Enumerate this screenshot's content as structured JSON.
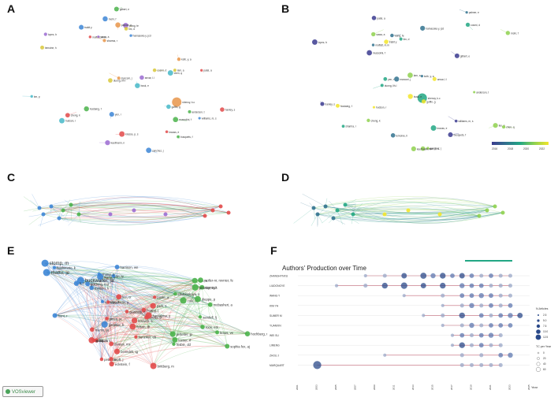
{
  "panels": {
    "A": {
      "letter": "A"
    },
    "B": {
      "letter": "B",
      "colorbar_ticks": [
        "2016",
        "2018",
        "2020",
        "2022"
      ]
    },
    "C": {
      "letter": "C"
    },
    "D": {
      "letter": "D"
    },
    "E": {
      "letter": "E",
      "watermark": "VOSviewer"
    },
    "F": {
      "letter": "F"
    }
  },
  "colors": {
    "red": "#e24a4a",
    "blue": "#3d86d6",
    "green": "#4bb34b",
    "purple": "#9b6bd1",
    "yellow": "#d8c83a",
    "orange": "#e8954a",
    "cyan": "#46b8c8",
    "navy": "#2b4a8a",
    "viridis": [
      "#3b3b8f",
      "#31728e",
      "#22a784",
      "#8fd14f",
      "#f2e52b"
    ]
  },
  "network_labels": {
    "A": [
      "moffatt, m.m",
      "hamasoka y, jcd",
      "anvar, l.l",
      "duong, lih-l",
      "shenoy, k.c",
      "hudson, r",
      "busquets, f",
      "kresse, p, s",
      "trabit y",
      "wang, fe",
      "lam, a",
      "marconi, j",
      "goffin, g",
      "hostaing, f",
      "krauss, e",
      "sanchez, j",
      "sawa, a",
      "lim, d",
      "kolb, y, a",
      "busk, e",
      "anderson, t",
      "cheng, k",
      "williams, m, s",
      "kaufmann, n",
      "lemoine, h",
      "sharma, r",
      "lee, p",
      "gilbert, e",
      "hanley, s",
      "mohr, f",
      "lopez, b",
      "cosmi, d",
      "palmer, e",
      "chen, q",
      "mussolini, f",
      "patel, a",
      "yen, r"
    ],
    "E": [
      "rhattu, je",
      "buckwalter, ja",
      "stomp, m",
      "gauthier, b",
      "hunt, r",
      "hashimoto, k",
      "lin, lz",
      "li, f",
      "matsuo, k",
      "spector, e",
      "goldring, md",
      "zhang, z",
      "wang, y",
      "harrison, wn",
      "brittberg, m",
      "bauer, c",
      "poole, a",
      "peterson, l",
      "eckstein, f",
      "fenwick, s",
      "jones, ja",
      "hunziker, eb",
      "felson, dt",
      "dumas, ms",
      "mort, j",
      "wu, g",
      "huang, j",
      "park, s",
      "giannetti, c",
      "kreuz, p",
      "benedek, tg",
      "gobbi, a",
      "hamajima, y",
      "lee, cr",
      "steadman, jr",
      "martin, ja",
      "cole, bj",
      "kon, e",
      "chubinskaya, s",
      "frisbie, dd",
      "kraus, ve",
      "loeser, rf",
      "aigner, t",
      "sandell, lj",
      "roos, em",
      "mobasheri, a",
      "pelletier, jp",
      "moller-nr, rovnier, fe",
      "sophia fox, aj",
      "hochberg, mc",
      "dieppe, p",
      "pritzker, kph"
    ]
  },
  "chart_data": [
    {
      "panel": "F",
      "type": "scatter",
      "title": "Authors' Production over Time",
      "xlabel": "Year",
      "x": [
        "2001",
        "2003",
        "2005",
        "2007",
        "2009",
        "2011",
        "2013",
        "2015",
        "2017",
        "2019",
        "2021",
        "2023",
        "2025"
      ],
      "categories": [
        "ZHANGHYNXU",
        "LIUDONGYE",
        "WANG Y",
        "KIM YH",
        "SUMER M",
        "YUANXIN",
        "WEI SU",
        "LIMENG",
        "ZHOU J",
        "MARQUART"
      ],
      "legend_title_articles": "N.Articles",
      "legend_articles": [
        "2.5",
        "5.0",
        "7.5",
        "10.0",
        "12.5"
      ],
      "legend_title_tc": "TC per Year",
      "legend_tc": [
        "0",
        "20",
        "40",
        "60"
      ],
      "series": [
        {
          "author": "ZHANGHYNXU",
          "years": [
            2008,
            2010,
            2012,
            2014,
            2015,
            2016,
            2017,
            2018,
            2019,
            2020,
            2021,
            2022,
            2023
          ],
          "articles": [
            1,
            2,
            5,
            7,
            4,
            6,
            3,
            5,
            3,
            2,
            3,
            2,
            2
          ]
        },
        {
          "author": "LIUDONGYE",
          "years": [
            2005,
            2008,
            2010,
            2012,
            2014,
            2016,
            2018,
            2019,
            2020,
            2021,
            2022,
            2023
          ],
          "articles": [
            1,
            2,
            6,
            8,
            5,
            6,
            4,
            3,
            3,
            2,
            2,
            2
          ]
        },
        {
          "author": "WANG Y",
          "years": [
            2012,
            2016,
            2018,
            2019,
            2020,
            2021,
            2022,
            2023
          ],
          "articles": [
            1,
            2,
            3,
            3,
            4,
            3,
            2,
            2
          ]
        },
        {
          "author": "KIM YH",
          "years": [
            2016,
            2018,
            2019,
            2020,
            2021,
            2022,
            2023
          ],
          "articles": [
            1,
            2,
            4,
            2,
            3,
            2,
            3
          ]
        },
        {
          "author": "SUMER M",
          "years": [
            2014,
            2016,
            2018,
            2020,
            2021,
            2022,
            2023,
            2024
          ],
          "articles": [
            1,
            2,
            6,
            3,
            2,
            3,
            4,
            5
          ]
        },
        {
          "author": "YUANXIN",
          "years": [
            2016,
            2018,
            2019,
            2020,
            2021,
            2022,
            2023
          ],
          "articles": [
            1,
            2,
            4,
            2,
            3,
            3,
            3
          ]
        },
        {
          "author": "WEI SU",
          "years": [
            2017,
            2018,
            2019,
            2020,
            2021,
            2022
          ],
          "articles": [
            1,
            3,
            2,
            3,
            4,
            2
          ]
        },
        {
          "author": "LIMENG",
          "years": [
            2017,
            2018,
            2019,
            2020,
            2021,
            2022
          ],
          "articles": [
            1,
            6,
            2,
            3,
            2,
            2
          ]
        },
        {
          "author": "ZHOU J",
          "years": [
            2010,
            2018,
            2020,
            2022,
            2023
          ],
          "articles": [
            1,
            2,
            2,
            3,
            4
          ]
        },
        {
          "author": "MARQUART",
          "years": [
            2003,
            2018,
            2019,
            2020,
            2021,
            2022
          ],
          "articles": [
            14,
            2,
            2,
            2,
            2,
            2
          ]
        }
      ]
    }
  ]
}
